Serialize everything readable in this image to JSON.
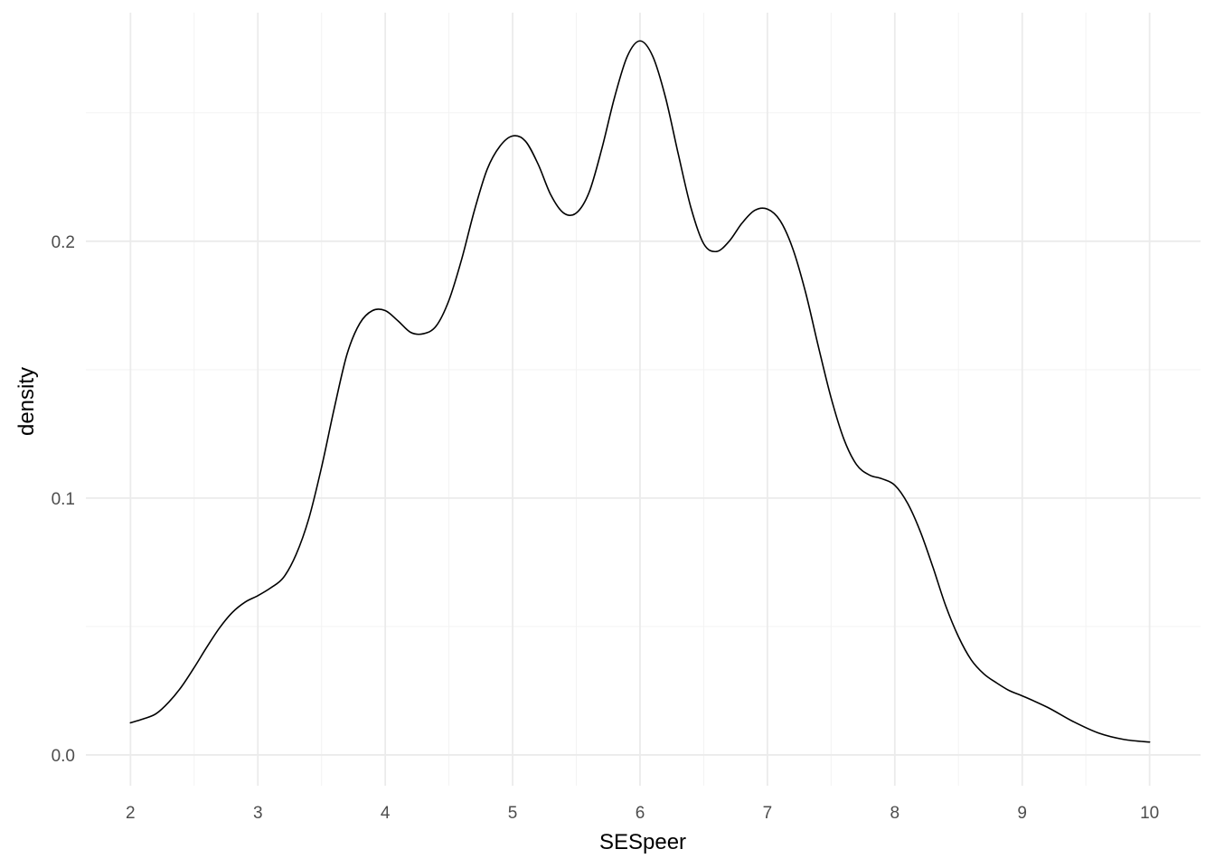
{
  "chart_data": {
    "type": "line",
    "title": "",
    "xlabel": "SESpeer",
    "ylabel": "density",
    "xlim": [
      1.65,
      10.4
    ],
    "ylim": [
      -0.012,
      0.289
    ],
    "x_ticks": [
      2,
      3,
      4,
      5,
      6,
      7,
      8,
      9,
      10
    ],
    "x_tick_labels": [
      "2",
      "3",
      "4",
      "5",
      "6",
      "7",
      "8",
      "9",
      "10"
    ],
    "y_ticks": [
      0.0,
      0.1,
      0.2
    ],
    "y_tick_labels": [
      "0.0",
      "0.1",
      "0.2"
    ],
    "x_minor_ticks": [
      2.5,
      3.5,
      4.5,
      5.5,
      6.5,
      7.5,
      8.5,
      9.5
    ],
    "y_minor_ticks": [
      0.05,
      0.15,
      0.25
    ],
    "grid": true,
    "legend": "none",
    "line_color": "#000000",
    "series": [
      {
        "x": [
          2.0,
          2.1,
          2.2,
          2.3,
          2.4,
          2.5,
          2.6,
          2.7,
          2.8,
          2.9,
          3.0,
          3.1,
          3.2,
          3.3,
          3.4,
          3.5,
          3.6,
          3.7,
          3.8,
          3.9,
          4.0,
          4.1,
          4.2,
          4.3,
          4.4,
          4.5,
          4.6,
          4.7,
          4.8,
          4.9,
          5.0,
          5.1,
          5.2,
          5.3,
          5.4,
          5.5,
          5.6,
          5.7,
          5.8,
          5.9,
          6.0,
          6.1,
          6.2,
          6.3,
          6.4,
          6.5,
          6.6,
          6.7,
          6.8,
          6.9,
          7.0,
          7.1,
          7.2,
          7.3,
          7.4,
          7.5,
          7.6,
          7.7,
          7.8,
          7.9,
          8.0,
          8.1,
          8.2,
          8.3,
          8.4,
          8.5,
          8.6,
          8.7,
          8.8,
          8.9,
          9.0,
          9.2,
          9.4,
          9.6,
          9.8,
          10.0
        ],
        "y": [
          0.0125,
          0.014,
          0.016,
          0.0205,
          0.0265,
          0.034,
          0.042,
          0.0495,
          0.0555,
          0.0595,
          0.062,
          0.065,
          0.069,
          0.078,
          0.092,
          0.112,
          0.135,
          0.156,
          0.168,
          0.173,
          0.173,
          0.169,
          0.1645,
          0.164,
          0.167,
          0.177,
          0.193,
          0.212,
          0.228,
          0.237,
          0.241,
          0.239,
          0.23,
          0.218,
          0.211,
          0.211,
          0.219,
          0.236,
          0.256,
          0.272,
          0.278,
          0.272,
          0.256,
          0.234,
          0.213,
          0.199,
          0.196,
          0.2,
          0.207,
          0.212,
          0.2125,
          0.208,
          0.197,
          0.18,
          0.159,
          0.139,
          0.123,
          0.113,
          0.109,
          0.1075,
          0.105,
          0.098,
          0.087,
          0.073,
          0.058,
          0.046,
          0.037,
          0.0315,
          0.028,
          0.025,
          0.023,
          0.0185,
          0.013,
          0.0085,
          0.006,
          0.005
        ]
      }
    ]
  }
}
